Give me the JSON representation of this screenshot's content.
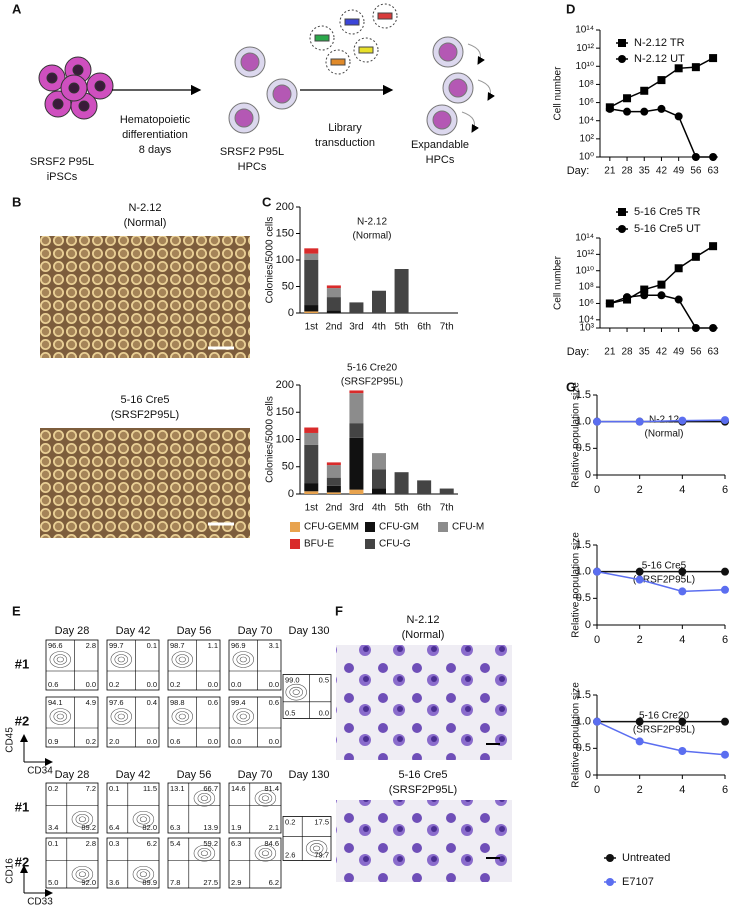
{
  "panel_labels": [
    "A",
    "B",
    "C",
    "D",
    "E",
    "F",
    "G"
  ],
  "schematic": {
    "start_label": [
      "SRSF2 P95L",
      "iPSCs"
    ],
    "step1": [
      "Hematopoietic",
      "differentiation",
      "8 days"
    ],
    "middle_label": [
      "SRSF2 P95L",
      "HPCs"
    ],
    "step2": [
      "Library",
      "transduction"
    ],
    "end_label": [
      "Expandable",
      "HPCs"
    ]
  },
  "micrographs_b": [
    {
      "title": [
        "N-2.12",
        "(Normal)"
      ]
    },
    {
      "title": [
        "5-16 Cre5",
        "(SRSF2P95L)"
      ]
    }
  ],
  "flow": {
    "blocks": [
      {
        "y_axis": "CD45",
        "x_axis": "CD34",
        "days": [
          "Day 28",
          "Day 42",
          "Day 56",
          "Day 70",
          "Day 130"
        ],
        "rows": [
          {
            "label": "#1",
            "plots": [
              [
                "96.6",
                "2.8",
                "0.6",
                "0.0"
              ],
              [
                "99.7",
                "0.1",
                "0.2",
                "0.0"
              ],
              [
                "98.7",
                "1.1",
                "0.2",
                "0.0"
              ],
              [
                "96.9",
                "3.1",
                "0.0",
                "0.0"
              ],
              [
                "99.0",
                "0.5",
                "0.5",
                "0.0"
              ]
            ]
          },
          {
            "label": "#2",
            "plots": [
              [
                "94.1",
                "4.9",
                "0.9",
                "0.2"
              ],
              [
                "97.6",
                "0.4",
                "2.0",
                "0.0"
              ],
              [
                "98.8",
                "0.6",
                "0.6",
                "0.0"
              ],
              [
                "99.4",
                "0.6",
                "0.0",
                "0.0"
              ]
            ]
          }
        ]
      },
      {
        "y_axis": "CD16",
        "x_axis": "CD33",
        "days": [
          "Day 28",
          "Day 42",
          "Day 56",
          "Day 70",
          "Day 130"
        ],
        "rows": [
          {
            "label": "#1",
            "plots": [
              [
                "0.2",
                "7.2",
                "3.4",
                "89.2"
              ],
              [
                "0.1",
                "11.5",
                "6.4",
                "82.0"
              ],
              [
                "13.1",
                "66.7",
                "6.3",
                "13.9"
              ],
              [
                "14.6",
                "81.4",
                "1.9",
                "2.1"
              ],
              [
                "0.2",
                "17.5",
                "2.6",
                "79.7"
              ]
            ]
          },
          {
            "label": "#2",
            "plots": [
              [
                "0.1",
                "2.8",
                "5.0",
                "92.0"
              ],
              [
                "0.3",
                "6.2",
                "3.6",
                "89.9"
              ],
              [
                "5.4",
                "59.2",
                "7.8",
                "27.5"
              ],
              [
                "6.3",
                "84.6",
                "2.9",
                "6.2"
              ]
            ]
          }
        ]
      }
    ]
  },
  "cytospins_f": [
    {
      "title": [
        "N-2.12",
        "(Normal)"
      ]
    },
    {
      "title": [
        "5-16 Cre5",
        "(SRSF2P95L)"
      ]
    }
  ],
  "chart_data": [
    {
      "type": "bar",
      "stacked": true,
      "title": [
        "N-2.12",
        "(Normal)"
      ],
      "y_label": "Colonies/5000 cells",
      "categories": [
        "1st",
        "2nd",
        "3rd",
        "4th",
        "5th",
        "6th",
        "7th"
      ],
      "ylim": [
        0,
        200
      ],
      "yticks": [
        0,
        50,
        100,
        150,
        200
      ],
      "series": [
        {
          "color": "#e8a34e",
          "values": [
            3,
            0,
            0,
            0,
            0,
            0,
            0
          ]
        },
        {
          "color": "#111111",
          "values": [
            12,
            5,
            0,
            0,
            0,
            0,
            0
          ]
        },
        {
          "color": "#444444",
          "values": [
            85,
            25,
            20,
            42,
            83,
            0,
            0
          ]
        },
        {
          "color": "#8c8c8c",
          "values": [
            12,
            17,
            0,
            0,
            0,
            0,
            0
          ]
        },
        {
          "color": "#d92b2b",
          "values": [
            10,
            5,
            0,
            0,
            0,
            0,
            0
          ]
        }
      ]
    },
    {
      "type": "bar",
      "stacked": true,
      "title": [
        "5-16 Cre20",
        "(SRSF2P95L)"
      ],
      "y_label": "Colonies/5000 cells",
      "categories": [
        "1st",
        "2nd",
        "3rd",
        "4th",
        "5th",
        "6th",
        "7th"
      ],
      "ylim": [
        0,
        200
      ],
      "yticks": [
        0,
        50,
        100,
        150,
        200
      ],
      "series": [
        {
          "name": "CFU-GEMM",
          "color": "#e8a34e",
          "values": [
            5,
            3,
            8,
            0,
            0,
            0,
            0
          ]
        },
        {
          "name": "CFU-GM",
          "color": "#111111",
          "values": [
            15,
            12,
            95,
            10,
            0,
            0,
            0
          ]
        },
        {
          "name": "CFU-G",
          "color": "#444444",
          "values": [
            70,
            15,
            27,
            35,
            40,
            25,
            10
          ]
        },
        {
          "name": "CFU-M",
          "color": "#8c8c8c",
          "values": [
            22,
            23,
            55,
            30,
            0,
            0,
            0
          ]
        },
        {
          "name": "BFU-E",
          "color": "#d92b2b",
          "values": [
            10,
            5,
            5,
            0,
            0,
            0,
            0
          ]
        }
      ]
    },
    {
      "type": "line",
      "log_scale": true,
      "y_label": "Cell number",
      "x_label": "Day:",
      "x": [
        21,
        28,
        35,
        42,
        49,
        56,
        63
      ],
      "xlim": [
        17,
        65
      ],
      "xticks": [
        21,
        28,
        35,
        42,
        49,
        56,
        63
      ],
      "ylim": [
        1,
        100000000000000
      ],
      "yticks": [
        {
          "value": 1,
          "label": "10⁰"
        },
        {
          "value": 100,
          "label": "10²"
        },
        {
          "value": 10000,
          "label": "10⁴"
        },
        {
          "value": 1000000,
          "label": "10⁶"
        },
        {
          "value": 100000000,
          "label": "10⁸"
        },
        {
          "value": 10000000000,
          "label": "10¹⁰"
        },
        {
          "value": 1000000000000,
          "label": "10¹²"
        },
        {
          "value": 100000000000000,
          "label": "10¹⁴"
        }
      ],
      "series": [
        {
          "name": "N-2.12 TR",
          "color": "#000000",
          "marker": "square",
          "values": [
            300000,
            3000000,
            20000000,
            300000000,
            6000000000,
            8000000000,
            80000000000
          ]
        },
        {
          "name": "N-2.12 UT",
          "color": "#000000",
          "marker": "circle",
          "values": [
            200000,
            100000,
            100000,
            200000,
            30000,
            1,
            1
          ]
        }
      ]
    },
    {
      "type": "line",
      "log_scale": true,
      "y_label": "Cell number",
      "x_label": "Day:",
      "x": [
        21,
        28,
        35,
        42,
        49,
        56,
        63
      ],
      "xlim": [
        17,
        65
      ],
      "xticks": [
        21,
        28,
        35,
        42,
        49,
        56,
        63
      ],
      "ylim": [
        1000,
        100000000000000
      ],
      "yticks": [
        {
          "value": 1000,
          "label": "10³"
        },
        {
          "value": 10000,
          "label": "10⁴"
        },
        {
          "value": 1000000,
          "label": "10⁶"
        },
        {
          "value": 100000000,
          "label": "10⁸"
        },
        {
          "value": 10000000000,
          "label": "10¹⁰"
        },
        {
          "value": 1000000000000,
          "label": "10¹²"
        },
        {
          "value": 100000000000000,
          "label": "10¹⁴"
        }
      ],
      "series": [
        {
          "name": "5-16 Cre5 TR",
          "color": "#000000",
          "marker": "square",
          "values": [
            1000000,
            3000000,
            50000000,
            200000000,
            20000000000,
            500000000000,
            10000000000000
          ]
        },
        {
          "name": "5-16 Cre5 UT",
          "color": "#000000",
          "marker": "circle",
          "values": [
            1000000,
            6000000,
            10000000,
            10000000,
            3000000,
            1000,
            1000
          ]
        }
      ]
    },
    {
      "type": "line",
      "title": [
        "N-2.12",
        "(Normal)"
      ],
      "y_label": "Relative population size",
      "x": [
        0,
        2,
        4,
        6
      ],
      "xlim": [
        0,
        6
      ],
      "xticks": [
        0,
        2,
        4,
        6
      ],
      "ylim": [
        0,
        1.5
      ],
      "yticks": [
        0,
        0.5,
        {
          "value": 1,
          "label": "1.0"
        },
        1.5
      ],
      "series": [
        {
          "color": "#111111",
          "marker": "circle",
          "values": [
            1,
            1,
            1,
            1
          ]
        },
        {
          "color": "#5b6ef0",
          "marker": "circle",
          "values": [
            1,
            1,
            1.02,
            1.03
          ]
        }
      ]
    },
    {
      "type": "line",
      "title": [
        "5-16 Cre5",
        "(SRSF2P95L)"
      ],
      "y_label": "Relative population size",
      "x": [
        0,
        2,
        4,
        6
      ],
      "xlim": [
        0,
        6
      ],
      "xticks": [
        0,
        2,
        4,
        6
      ],
      "ylim": [
        0,
        1.5
      ],
      "yticks": [
        0,
        0.5,
        {
          "value": 1,
          "label": "1.0"
        },
        1.5
      ],
      "series": [
        {
          "color": "#111111",
          "marker": "circle",
          "values": [
            1,
            1,
            1,
            1
          ]
        },
        {
          "color": "#5b6ef0",
          "marker": "circle",
          "values": [
            1,
            0.85,
            0.63,
            0.66
          ]
        }
      ]
    },
    {
      "type": "line",
      "title": [
        "5-16 Cre20",
        "(SRSF2P95L)"
      ],
      "y_label": "Relative population size",
      "x": [
        0,
        2,
        4,
        6
      ],
      "xlim": [
        0,
        6
      ],
      "xticks": [
        0,
        2,
        4,
        6
      ],
      "ylim": [
        0,
        1.5
      ],
      "yticks": [
        0,
        0.5,
        {
          "value": 1,
          "label": "1.0"
        },
        1.5
      ],
      "series": [
        {
          "name": "Untreated",
          "color": "#111111",
          "marker": "circle",
          "values": [
            1,
            1,
            1,
            1
          ]
        },
        {
          "name": "E7107",
          "color": "#5b6ef0",
          "marker": "circle",
          "values": [
            1,
            0.63,
            0.45,
            0.38
          ],
          "errors": [
            null,
            null,
            0.07,
            null
          ]
        }
      ]
    }
  ]
}
